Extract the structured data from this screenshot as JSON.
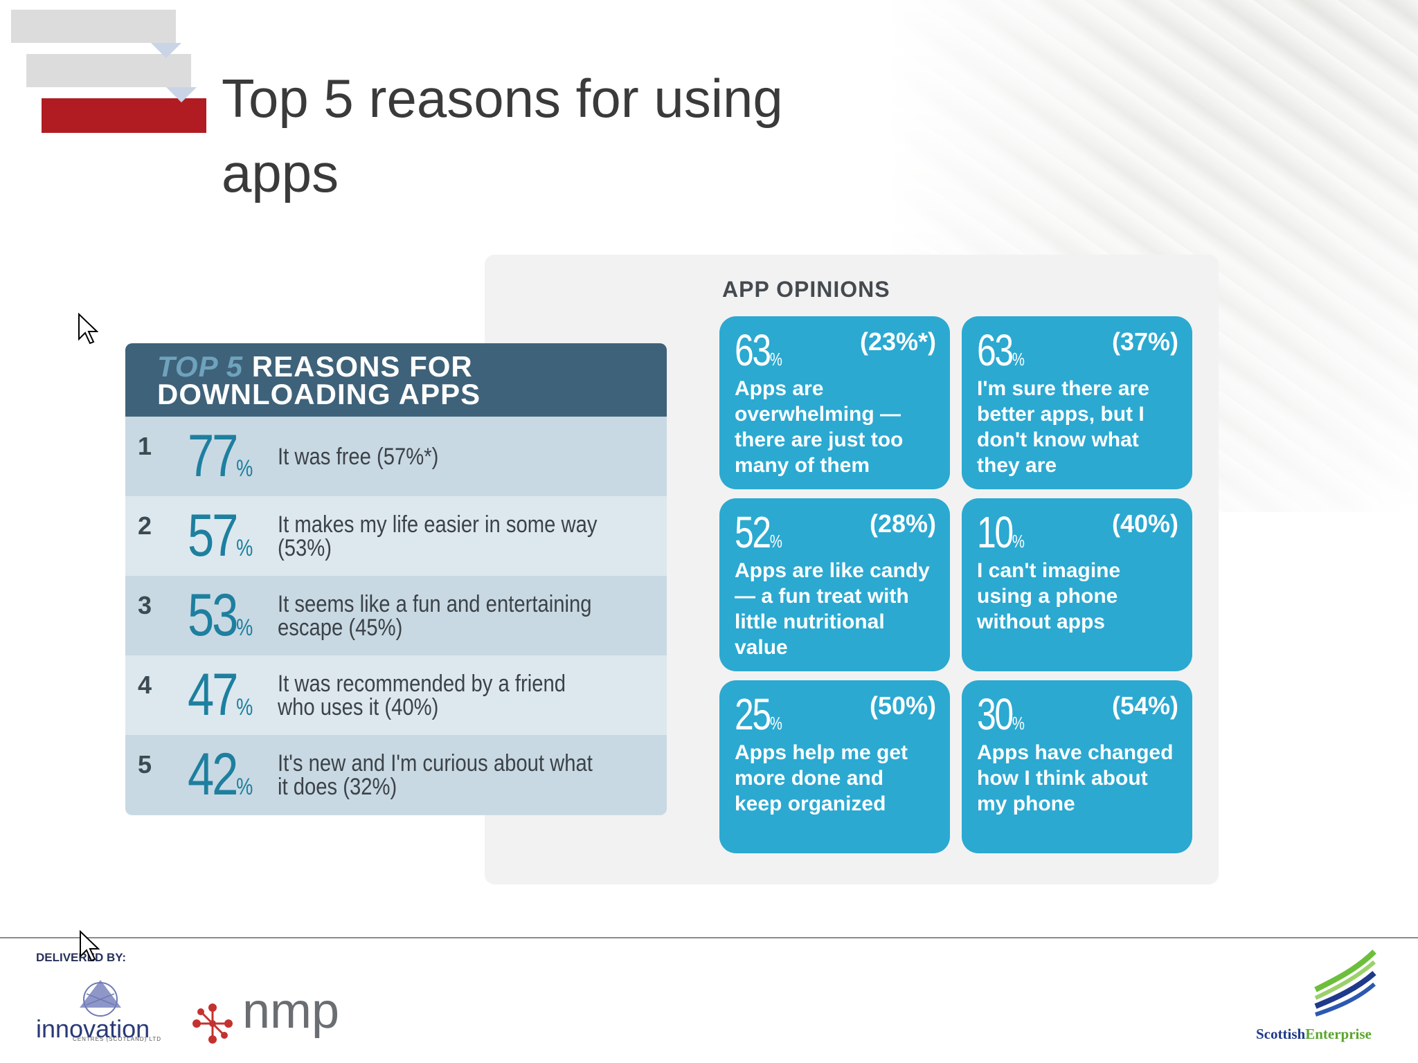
{
  "slide": {
    "title": "Top 5 reasons for using apps"
  },
  "reasons_panel": {
    "header_top5": "TOP 5",
    "header_line1_rest": " REASONS FOR",
    "header_line2": "DOWNLOADING APPS",
    "rows": [
      {
        "rank": "1",
        "value": "77",
        "unit": "%",
        "text": "It was free (57%*)"
      },
      {
        "rank": "2",
        "value": "57",
        "unit": "%",
        "text": "It makes my life easier in some way (53%)"
      },
      {
        "rank": "3",
        "value": "53",
        "unit": "%",
        "text": "It seems like a fun and entertaining escape (45%)"
      },
      {
        "rank": "4",
        "value": "47",
        "unit": "%",
        "text": "It was recommended by a friend who uses it (40%)"
      },
      {
        "rank": "5",
        "value": "42",
        "unit": "%",
        "text": "It's new and I'm curious about what it does (32%)"
      }
    ]
  },
  "opinions": {
    "title": "APP OPINIONS",
    "cards": [
      {
        "value": "63",
        "unit": "%",
        "prev": "(23%*)",
        "text": "Apps are overwhelming — there are just too many of them"
      },
      {
        "value": "63",
        "unit": "%",
        "prev": "(37%)",
        "text": "I'm sure there are better apps, but I don't know what they are"
      },
      {
        "value": "52",
        "unit": "%",
        "prev": "(28%)",
        "text": "Apps are like candy — a fun treat with little nutritional value"
      },
      {
        "value": "10",
        "unit": "%",
        "prev": "(40%)",
        "text": "I can't imagine using a phone without apps"
      },
      {
        "value": "25",
        "unit": "%",
        "prev": "(50%)",
        "text": "Apps help me get more done and keep organized"
      },
      {
        "value": "30",
        "unit": "%",
        "prev": "(54%)",
        "text": "Apps have changed how I think about my phone"
      }
    ]
  },
  "footer": {
    "delivered_by": "DELIVERED BY:",
    "innovation_word": "innovation",
    "innovation_sub": "CENTRES (SCOTLAND) LTD",
    "nmp_word": "nmp",
    "se_word_1": "Scottish",
    "se_word_2": "Enterprise"
  },
  "colors": {
    "accent_red": "#b01c22",
    "header_blue": "#3e6279",
    "card_blue": "#2ba9d1",
    "number_blue": "#1e7f9f"
  }
}
